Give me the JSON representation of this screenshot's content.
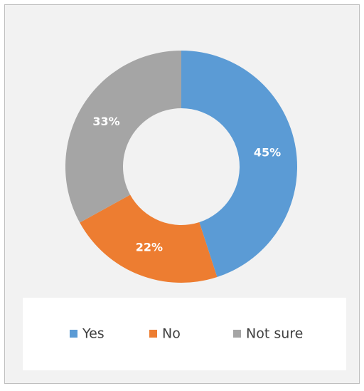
{
  "chart_data": {
    "type": "donut",
    "categories": [
      "Yes",
      "No",
      "Not sure"
    ],
    "values": [
      45,
      22,
      33
    ],
    "value_labels": [
      "45%",
      "22%",
      "33%"
    ],
    "colors": [
      "#5b9bd5",
      "#ed7d31",
      "#a5a5a5"
    ],
    "legend": "bottom"
  }
}
